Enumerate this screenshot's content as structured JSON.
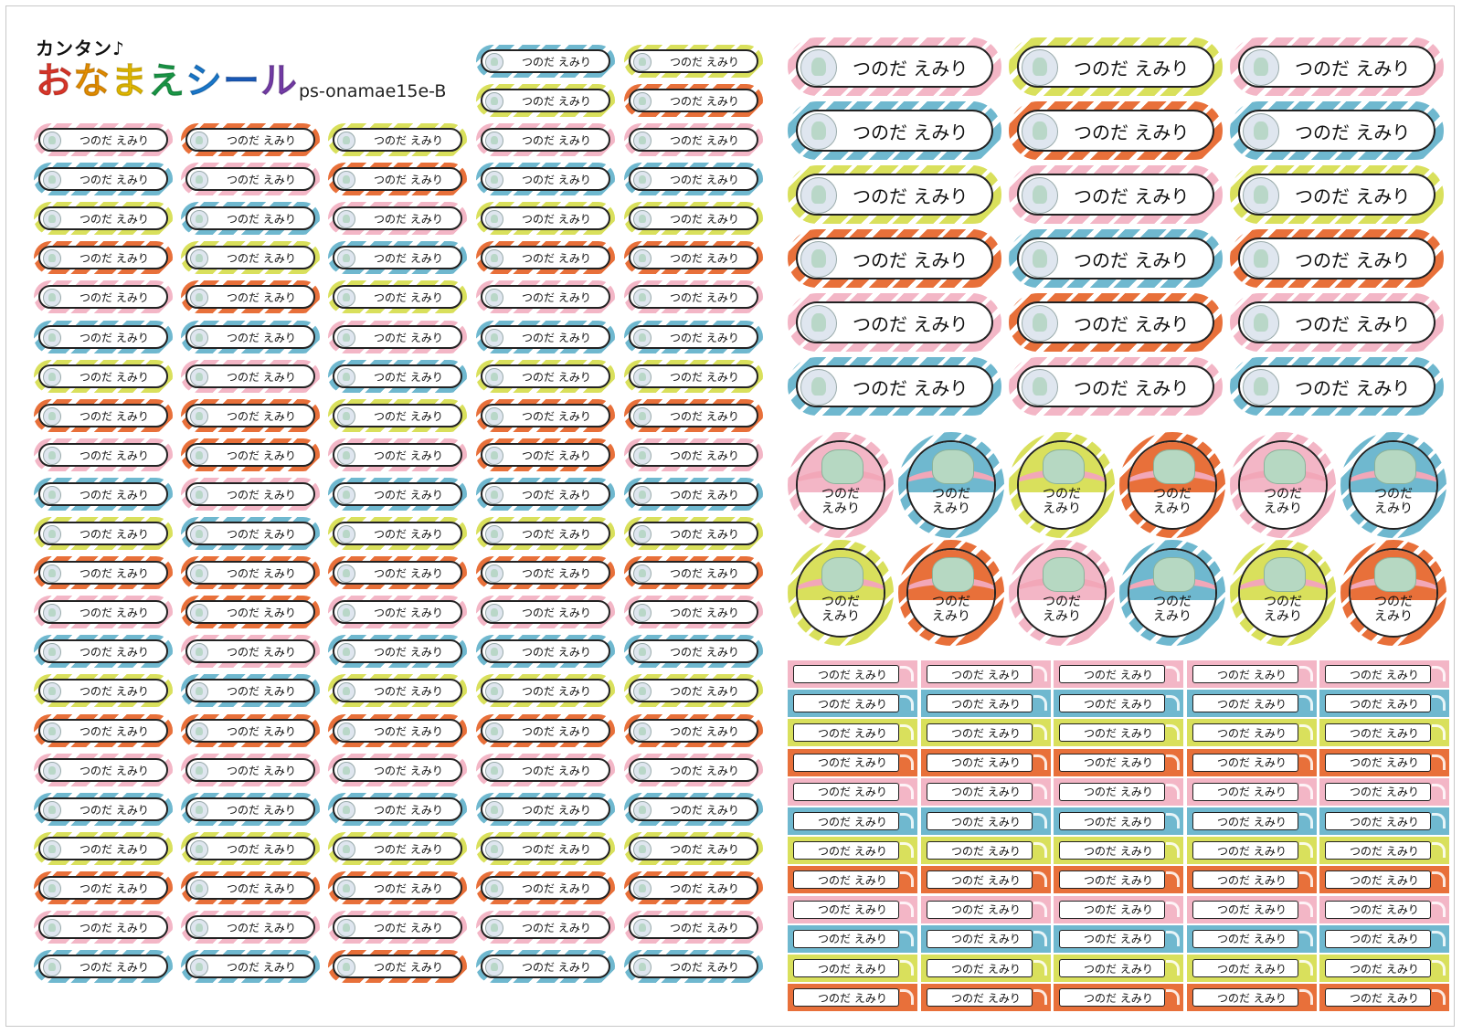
{
  "brand": {
    "small": "カンタン♪",
    "large_chars": [
      "お",
      "な",
      "ま",
      "え",
      "シ",
      "ー",
      "ル"
    ],
    "large_colors": [
      "#e8392c",
      "#f29600",
      "#f0c400",
      "#1ba04a",
      "#1b7ed6",
      "#1b5fc4",
      "#7a3fb0"
    ],
    "code": "ps-onamae15e-B"
  },
  "sticker_name": "つのだ えみり",
  "round_name_lines": [
    "つのだ",
    "えみり"
  ],
  "palette": {
    "pink": "#f3b6c6",
    "blue": "#6fb8cf",
    "yellow": "#d9e05c",
    "orange": "#e8703a"
  },
  "small_column_patterns": [
    [
      "pink",
      "blue",
      "yellow",
      "orange",
      "pink",
      "blue",
      "yellow",
      "orange",
      "pink",
      "blue",
      "yellow",
      "orange",
      "pink",
      "blue",
      "yellow",
      "orange",
      "pink",
      "blue",
      "yellow",
      "orange",
      "pink",
      "blue",
      "yellow"
    ],
    [
      "orange",
      "pink",
      "blue",
      "yellow",
      "orange",
      "blue",
      "pink",
      "orange",
      "orange",
      "pink",
      "blue",
      "orange",
      "orange",
      "pink",
      "blue",
      "orange",
      "pink",
      "blue",
      "yellow",
      "orange",
      "pink",
      "blue",
      "yellow"
    ],
    [
      "yellow",
      "orange",
      "pink",
      "blue",
      "yellow",
      "pink",
      "blue",
      "yellow",
      "pink",
      "blue",
      "yellow",
      "orange",
      "pink",
      "blue",
      "yellow",
      "orange",
      "pink",
      "blue",
      "yellow",
      "orange",
      "pink",
      "orange",
      "blue"
    ],
    [
      "blue",
      "yellow",
      "pink",
      "blue",
      "yellow",
      "orange",
      "pink",
      "blue",
      "yellow",
      "orange",
      "orange",
      "blue",
      "yellow",
      "orange",
      "pink",
      "blue",
      "yellow",
      "orange",
      "pink",
      "blue",
      "yellow",
      "orange",
      "pink",
      "blue",
      "yellow"
    ],
    [
      "yellow",
      "orange",
      "pink",
      "blue",
      "yellow",
      "orange",
      "pink",
      "blue",
      "yellow",
      "orange",
      "pink",
      "blue",
      "yellow",
      "orange",
      "pink",
      "blue",
      "yellow",
      "orange",
      "pink",
      "blue",
      "yellow",
      "orange",
      "pink",
      "blue",
      "yellow"
    ]
  ],
  "large_pill_patterns": [
    [
      "pink",
      "yellow",
      "pink"
    ],
    [
      "blue",
      "orange",
      "blue"
    ],
    [
      "yellow",
      "pink",
      "yellow"
    ],
    [
      "orange",
      "blue",
      "orange"
    ],
    [
      "pink",
      "orange",
      "pink"
    ],
    [
      "blue",
      "pink",
      "blue"
    ]
  ],
  "round_patterns": [
    [
      "pink",
      "blue",
      "yellow",
      "orange",
      "pink",
      "blue"
    ],
    [
      "yellow",
      "orange",
      "pink",
      "blue",
      "yellow",
      "orange"
    ]
  ],
  "flag_patterns": [
    [
      "pink",
      "pink",
      "pink",
      "pink",
      "pink"
    ],
    [
      "blue",
      "blue",
      "blue",
      "blue",
      "blue"
    ],
    [
      "yellow",
      "yellow",
      "yellow",
      "yellow",
      "yellow"
    ],
    [
      "orange",
      "orange",
      "orange",
      "orange",
      "orange"
    ],
    [
      "pink",
      "pink",
      "pink",
      "pink",
      "pink"
    ],
    [
      "blue",
      "blue",
      "blue",
      "blue",
      "blue"
    ],
    [
      "yellow",
      "yellow",
      "yellow",
      "yellow",
      "yellow"
    ],
    [
      "orange",
      "orange",
      "orange",
      "orange",
      "orange"
    ],
    [
      "pink",
      "pink",
      "pink",
      "pink",
      "pink"
    ],
    [
      "blue",
      "blue",
      "blue",
      "blue",
      "blue"
    ],
    [
      "yellow",
      "yellow",
      "yellow",
      "yellow",
      "yellow"
    ],
    [
      "orange",
      "orange",
      "orange",
      "orange",
      "orange"
    ]
  ]
}
